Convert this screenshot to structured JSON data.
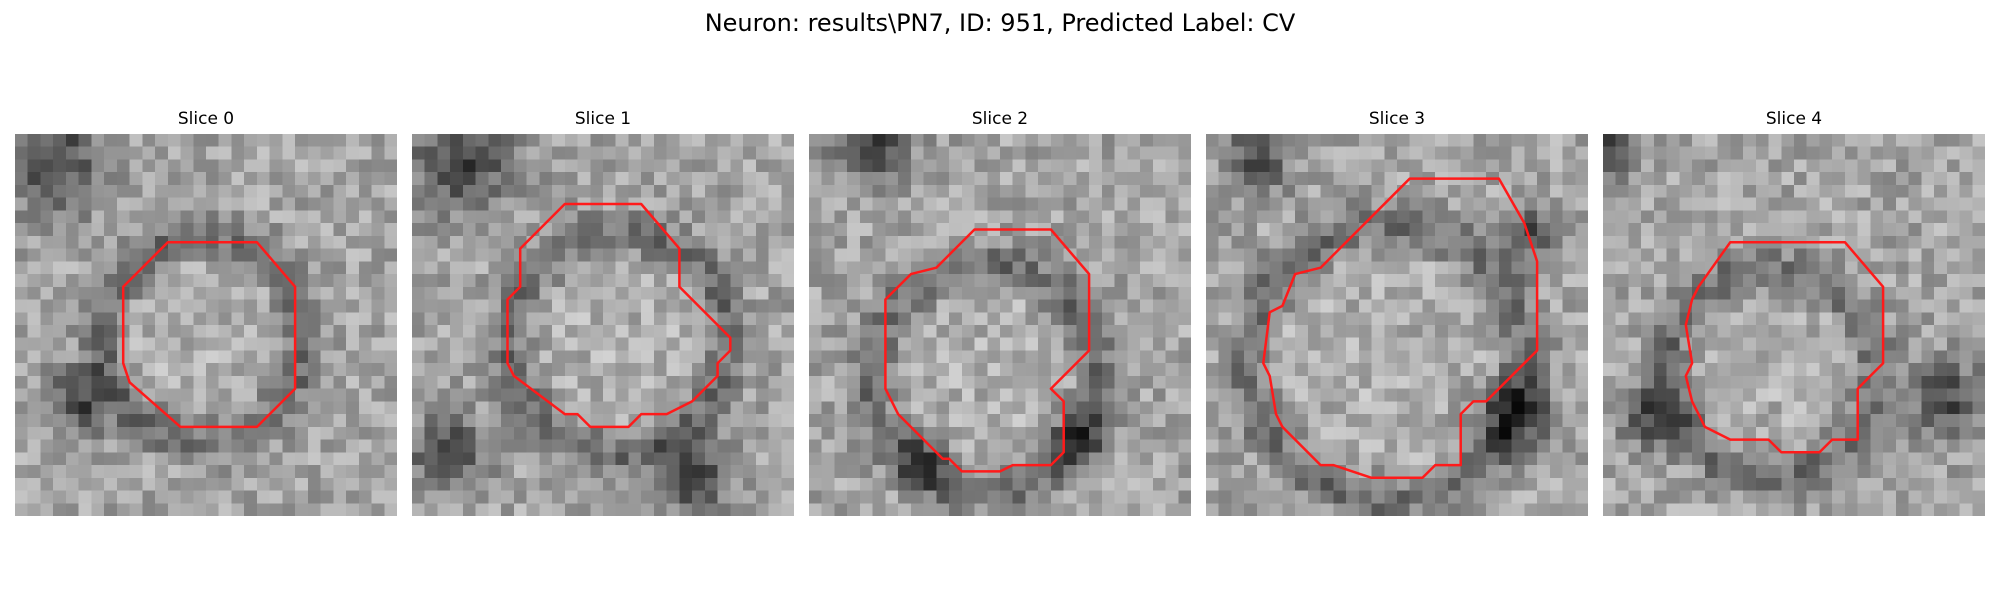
{
  "figure": {
    "title": "Neuron: results\\PN7, ID: 951, Predicted Label: CV"
  },
  "colors": {
    "outline": "#ff1a1a",
    "background": "#ffffff"
  },
  "panels": [
    {
      "title": "Slice 0"
    },
    {
      "title": "Slice 1"
    },
    {
      "title": "Slice 2"
    },
    {
      "title": "Slice 3"
    },
    {
      "title": "Slice 4"
    }
  ]
}
